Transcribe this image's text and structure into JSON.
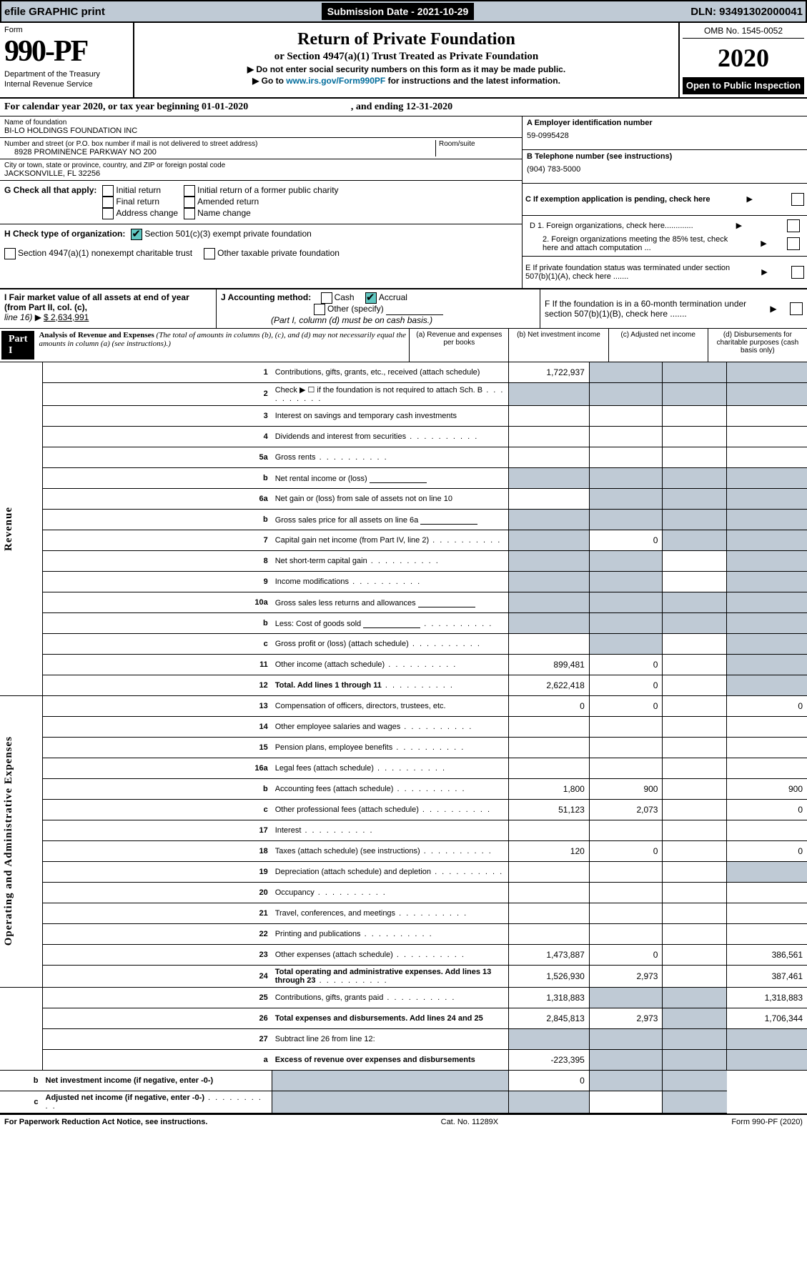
{
  "topbar": {
    "efile": "efile GRAPHIC print",
    "subdate_lbl": "Submission Date - 2021-10-29",
    "dln": "DLN: 93491302000041"
  },
  "header": {
    "form_word": "Form",
    "form_num": "990-PF",
    "dept": "Department of the Treasury",
    "irs": "Internal Revenue Service",
    "title": "Return of Private Foundation",
    "subtitle": "or Section 4947(a)(1) Trust Treated as Private Foundation",
    "l1": "Do not enter social security numbers on this form as it may be made public.",
    "l2_a": "Go to ",
    "l2_link": "www.irs.gov/Form990PF",
    "l2_b": " for instructions and the latest information.",
    "omb": "OMB No. 1545-0052",
    "year": "2020",
    "open": "Open to Public Inspection"
  },
  "calyear": {
    "a": "For calendar year 2020, or tax year beginning 01-01-2020",
    "b": ", and ending 12-31-2020"
  },
  "name": {
    "lbl": "Name of foundation",
    "val": "BI-LO HOLDINGS FOUNDATION INC"
  },
  "address": {
    "lbl": "Number and street (or P.O. box number if mail is not delivered to street address)",
    "room": "Room/suite",
    "val": "8928 PROMINENCE PARKWAY NO 200"
  },
  "city": {
    "lbl": "City or town, state or province, country, and ZIP or foreign postal code",
    "val": "JACKSONVILLE, FL  32256"
  },
  "right": {
    "A_lbl": "A Employer identification number",
    "A_val": "59-0995428",
    "B_lbl": "B Telephone number (see instructions)",
    "B_val": "(904) 783-5000",
    "C": "C If exemption application is pending, check here",
    "D1": "D 1. Foreign organizations, check here.............",
    "D2": "2. Foreign organizations meeting the 85% test, check here and attach computation ...",
    "E": "E  If private foundation status was terminated under section 507(b)(1)(A), check here .......",
    "F": "F  If the foundation is in a 60-month termination under section 507(b)(1)(B), check here ......."
  },
  "G": {
    "lbl": "G Check all that apply:",
    "opts": [
      "Initial return",
      "Final return",
      "Address change",
      "Initial return of a former public charity",
      "Amended return",
      "Name change"
    ]
  },
  "H": {
    "lbl": "H Check type of organization:",
    "o1": "Section 501(c)(3) exempt private foundation",
    "o2": "Section 4947(a)(1) nonexempt charitable trust",
    "o3": "Other taxable private foundation"
  },
  "I": {
    "lbl": "I Fair market value of all assets at end of year (from Part II, col. (c),",
    "line": "line 16) ",
    "val": "$  2,634,991"
  },
  "J": {
    "lbl": "J Accounting method:",
    "cash": "Cash",
    "accrual": "Accrual",
    "other": "Other (specify)",
    "note": "(Part I, column (d) must be on cash basis.)"
  },
  "part1": {
    "hdr": "Part I",
    "title": "Analysis of Revenue and Expenses",
    "note": "(The total of amounts in columns (b), (c), and (d) may not necessarily equal the amounts in column (a) (see instructions).)",
    "colA": "(a)   Revenue and expenses per books",
    "colB": "(b)   Net investment income",
    "colC": "(c)   Adjusted net income",
    "colD": "(d)  Disbursements for charitable purposes (cash basis only)"
  },
  "sides": {
    "rev": "Revenue",
    "exp": "Operating and Administrative Expenses"
  },
  "rows": [
    {
      "n": "1",
      "d": "Contributions, gifts, grants, etc., received (attach schedule)",
      "a": "1,722,937",
      "bs": true,
      "cs": true,
      "ds": true
    },
    {
      "n": "2",
      "d": "Check ▶ ☐ if the foundation is not required to attach Sch. B",
      "dots": true,
      "as": true,
      "bs": true,
      "cs": true,
      "ds": true
    },
    {
      "n": "3",
      "d": "Interest on savings and temporary cash investments"
    },
    {
      "n": "4",
      "d": "Dividends and interest from securities",
      "dots": true
    },
    {
      "n": "5a",
      "d": "Gross rents",
      "dots": true
    },
    {
      "n": "b",
      "d": "Net rental income or (loss)",
      "box": true,
      "as": true,
      "bs": true,
      "cs": true,
      "ds": true
    },
    {
      "n": "6a",
      "d": "Net gain or (loss) from sale of assets not on line 10",
      "bs": true,
      "cs": true,
      "ds": true
    },
    {
      "n": "b",
      "d": "Gross sales price for all assets on line 6a",
      "box": true,
      "as": true,
      "bs": true,
      "cs": true,
      "ds": true
    },
    {
      "n": "7",
      "d": "Capital gain net income (from Part IV, line 2)",
      "dots": true,
      "as": true,
      "b": "0",
      "cs": true,
      "ds": true
    },
    {
      "n": "8",
      "d": "Net short-term capital gain",
      "dots": true,
      "as": true,
      "bs": true,
      "ds": true
    },
    {
      "n": "9",
      "d": "Income modifications",
      "dots": true,
      "as": true,
      "bs": true,
      "ds": true
    },
    {
      "n": "10a",
      "d": "Gross sales less returns and allowances",
      "box": true,
      "as": true,
      "bs": true,
      "cs": true,
      "ds": true
    },
    {
      "n": "b",
      "d": "Less: Cost of goods sold",
      "dots": true,
      "box": true,
      "as": true,
      "bs": true,
      "cs": true,
      "ds": true
    },
    {
      "n": "c",
      "d": "Gross profit or (loss) (attach schedule)",
      "dots": true,
      "bs": true,
      "ds": true
    },
    {
      "n": "11",
      "d": "Other income (attach schedule)",
      "dots": true,
      "a": "899,481",
      "b": "0",
      "ds": true
    },
    {
      "n": "12",
      "d": "Total. Add lines 1 through 11",
      "dots": true,
      "bold": true,
      "a": "2,622,418",
      "b": "0",
      "ds": true
    },
    {
      "n": "13",
      "d": "Compensation of officers, directors, trustees, etc.",
      "a": "0",
      "b": "0",
      "d2": "0"
    },
    {
      "n": "14",
      "d": "Other employee salaries and wages",
      "dots": true
    },
    {
      "n": "15",
      "d": "Pension plans, employee benefits",
      "dots": true
    },
    {
      "n": "16a",
      "d": "Legal fees (attach schedule)",
      "dots": true
    },
    {
      "n": "b",
      "d": "Accounting fees (attach schedule)",
      "dots": true,
      "a": "1,800",
      "b": "900",
      "d2": "900"
    },
    {
      "n": "c",
      "d": "Other professional fees (attach schedule)",
      "dots": true,
      "a": "51,123",
      "b": "2,073",
      "d2": "0"
    },
    {
      "n": "17",
      "d": "Interest",
      "dots": true
    },
    {
      "n": "18",
      "d": "Taxes (attach schedule) (see instructions)",
      "dots": true,
      "a": "120",
      "b": "0",
      "d2": "0"
    },
    {
      "n": "19",
      "d": "Depreciation (attach schedule) and depletion",
      "dots": true,
      "ds": true
    },
    {
      "n": "20",
      "d": "Occupancy",
      "dots": true
    },
    {
      "n": "21",
      "d": "Travel, conferences, and meetings",
      "dots": true
    },
    {
      "n": "22",
      "d": "Printing and publications",
      "dots": true
    },
    {
      "n": "23",
      "d": "Other expenses (attach schedule)",
      "dots": true,
      "a": "1,473,887",
      "b": "0",
      "d2": "386,561"
    },
    {
      "n": "24",
      "d": "Total operating and administrative expenses. Add lines 13 through 23",
      "dots": true,
      "bold": true,
      "a": "1,526,930",
      "b": "2,973",
      "d2": "387,461"
    },
    {
      "n": "25",
      "d": "Contributions, gifts, grants paid",
      "dots": true,
      "a": "1,318,883",
      "bs": true,
      "cs": true,
      "d2": "1,318,883"
    },
    {
      "n": "26",
      "d": "Total expenses and disbursements. Add lines 24 and 25",
      "bold": true,
      "a": "2,845,813",
      "b": "2,973",
      "cs": true,
      "d2": "1,706,344"
    },
    {
      "n": "27",
      "d": "Subtract line 26 from line 12:",
      "as": true,
      "bs": true,
      "cs": true,
      "ds": true
    },
    {
      "n": "a",
      "d": "Excess of revenue over expenses and disbursements",
      "bold": true,
      "a": "-223,395",
      "bs": true,
      "cs": true,
      "ds": true
    },
    {
      "n": "b",
      "d": "Net investment income (if negative, enter -0-)",
      "bold": true,
      "as": true,
      "b": "0",
      "cs": true,
      "ds": true
    },
    {
      "n": "c",
      "d": "Adjusted net income (if negative, enter -0-)",
      "dots": true,
      "bold": true,
      "as": true,
      "bs": true,
      "ds": true
    }
  ],
  "footer": {
    "l": "For Paperwork Reduction Act Notice, see instructions.",
    "c": "Cat. No. 11289X",
    "r": "Form 990-PF (2020)"
  }
}
